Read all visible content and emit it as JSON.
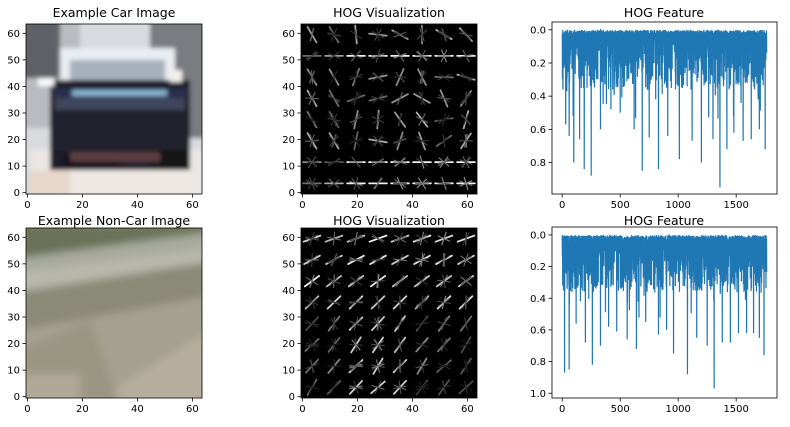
{
  "chart_data": [
    {
      "type": "image",
      "title": "Example Car Image",
      "xticks": [
        0,
        20,
        40,
        60
      ],
      "yticks": [
        0,
        10,
        20,
        30,
        40,
        50,
        60
      ],
      "xlim": [
        -0.5,
        63.5
      ],
      "ylim": [
        63.5,
        -0.5
      ]
    },
    {
      "type": "heatmap",
      "title": "HOG Visualization",
      "xticks": [
        0,
        20,
        40,
        60
      ],
      "yticks": [
        0,
        10,
        20,
        30,
        40,
        50,
        60
      ],
      "xlim": [
        -0.5,
        63.5
      ],
      "ylim": [
        63.5,
        -0.5
      ],
      "cmap": "gray"
    },
    {
      "type": "line",
      "title": "HOG Feature",
      "xticks": [
        0,
        500,
        1000,
        1500
      ],
      "yticks": [
        0.0,
        0.2,
        0.4,
        0.6,
        0.8
      ],
      "xlim": [
        -88,
        1852
      ],
      "ylim": [
        -0.047,
        0.99
      ],
      "series_color": "#1f77b4",
      "n_points": 1764,
      "seed": 7,
      "peaks": [
        [
          30,
          0.57
        ],
        [
          60,
          0.64
        ],
        [
          100,
          0.8
        ],
        [
          150,
          0.66
        ],
        [
          190,
          0.84
        ],
        [
          250,
          0.88
        ],
        [
          330,
          0.6
        ],
        [
          420,
          0.48
        ],
        [
          500,
          0.5
        ],
        [
          620,
          0.6
        ],
        [
          690,
          0.85
        ],
        [
          750,
          0.65
        ],
        [
          830,
          0.84
        ],
        [
          910,
          0.64
        ],
        [
          1010,
          0.78
        ],
        [
          1120,
          0.67
        ],
        [
          1200,
          0.8
        ],
        [
          1300,
          0.66
        ],
        [
          1360,
          0.95
        ],
        [
          1420,
          0.72
        ],
        [
          1480,
          0.62
        ],
        [
          1560,
          0.67
        ],
        [
          1630,
          0.66
        ],
        [
          1700,
          0.6
        ],
        [
          1750,
          0.72
        ]
      ]
    },
    {
      "type": "image",
      "title": "Example Non-Car Image",
      "xticks": [
        0,
        20,
        40,
        60
      ],
      "yticks": [
        0,
        10,
        20,
        30,
        40,
        50,
        60
      ],
      "xlim": [
        -0.5,
        63.5
      ],
      "ylim": [
        63.5,
        -0.5
      ]
    },
    {
      "type": "heatmap",
      "title": "HOG Visualization",
      "xticks": [
        0,
        20,
        40,
        60
      ],
      "yticks": [
        0,
        10,
        20,
        30,
        40,
        50,
        60
      ],
      "xlim": [
        -0.5,
        63.5
      ],
      "ylim": [
        63.5,
        -0.5
      ],
      "cmap": "gray"
    },
    {
      "type": "line",
      "title": "HOG Feature",
      "xticks": [
        0,
        500,
        1000,
        1500
      ],
      "yticks": [
        0.0,
        0.2,
        0.4,
        0.6,
        0.8,
        1.0
      ],
      "xlim": [
        -88,
        1852
      ],
      "ylim": [
        -0.05,
        1.03
      ],
      "series_color": "#1f77b4",
      "n_points": 1764,
      "seed": 13,
      "peaks": [
        [
          20,
          0.87
        ],
        [
          60,
          0.85
        ],
        [
          120,
          0.56
        ],
        [
          200,
          0.68
        ],
        [
          260,
          0.82
        ],
        [
          330,
          0.7
        ],
        [
          400,
          0.58
        ],
        [
          470,
          0.61
        ],
        [
          560,
          0.66
        ],
        [
          640,
          0.72
        ],
        [
          720,
          0.55
        ],
        [
          830,
          0.63
        ],
        [
          900,
          0.6
        ],
        [
          960,
          0.75
        ],
        [
          1080,
          0.88
        ],
        [
          1160,
          0.65
        ],
        [
          1250,
          0.7
        ],
        [
          1310,
          0.97
        ],
        [
          1380,
          0.68
        ],
        [
          1450,
          0.68
        ],
        [
          1520,
          0.62
        ],
        [
          1590,
          0.62
        ],
        [
          1650,
          0.62
        ],
        [
          1700,
          0.65
        ],
        [
          1740,
          0.76
        ]
      ]
    }
  ]
}
